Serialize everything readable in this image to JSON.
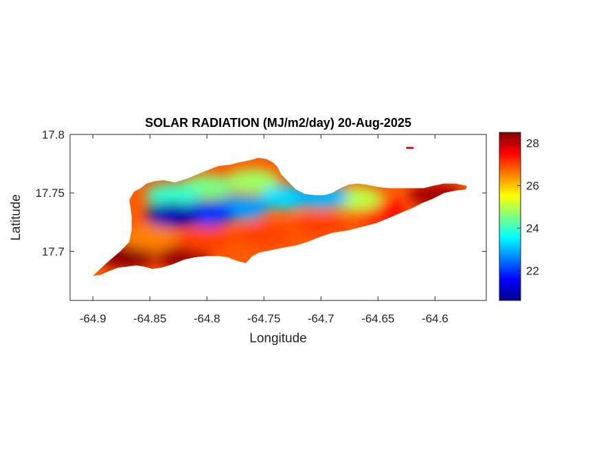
{
  "title": "SOLAR RADIATION (MJ/m2/day) 20-Aug-2025",
  "axes": {
    "xlabel": "Longitude",
    "ylabel": "Latitude",
    "x_ticks": [
      "-64.9",
      "-64.85",
      "-64.8",
      "-64.75",
      "-64.7",
      "-64.65",
      "-64.6"
    ],
    "y_ticks": [
      "17.8",
      "17.75",
      "17.7"
    ],
    "xlim": [
      -64.92,
      -64.555
    ],
    "ylim": [
      17.658,
      17.8
    ]
  },
  "colorbar": {
    "colormap": "jet",
    "min": 20.6,
    "max": 28.5,
    "ticks": [
      "28",
      "26",
      "24",
      "22"
    ]
  },
  "map": {
    "region": "St. Croix",
    "outline_lonlat": [
      [
        -64.9,
        17.679
      ],
      [
        -64.888,
        17.69
      ],
      [
        -64.876,
        17.7
      ],
      [
        -64.868,
        17.708
      ],
      [
        -64.866,
        17.718
      ],
      [
        -64.866,
        17.73
      ],
      [
        -64.867,
        17.738
      ],
      [
        -64.868,
        17.744
      ],
      [
        -64.864,
        17.751
      ],
      [
        -64.858,
        17.754
      ],
      [
        -64.853,
        17.758
      ],
      [
        -64.846,
        17.76
      ],
      [
        -64.838,
        17.761
      ],
      [
        -64.828,
        17.759
      ],
      [
        -64.818,
        17.762
      ],
      [
        -64.808,
        17.766
      ],
      [
        -64.798,
        17.77
      ],
      [
        -64.79,
        17.773
      ],
      [
        -64.78,
        17.774
      ],
      [
        -64.772,
        17.776
      ],
      [
        -64.762,
        17.778
      ],
      [
        -64.755,
        17.78
      ],
      [
        -64.748,
        17.779
      ],
      [
        -64.742,
        17.776
      ],
      [
        -64.738,
        17.772
      ],
      [
        -64.735,
        17.766
      ],
      [
        -64.729,
        17.76
      ],
      [
        -64.722,
        17.753
      ],
      [
        -64.714,
        17.749
      ],
      [
        -64.705,
        17.748
      ],
      [
        -64.697,
        17.748
      ],
      [
        -64.69,
        17.75
      ],
      [
        -64.683,
        17.754
      ],
      [
        -64.676,
        17.757
      ],
      [
        -64.668,
        17.758
      ],
      [
        -64.66,
        17.757
      ],
      [
        -64.65,
        17.755
      ],
      [
        -64.64,
        17.754
      ],
      [
        -64.63,
        17.754
      ],
      [
        -64.62,
        17.754
      ],
      [
        -64.61,
        17.754
      ],
      [
        -64.602,
        17.756
      ],
      [
        -64.592,
        17.758
      ],
      [
        -64.582,
        17.758
      ],
      [
        -64.572,
        17.756
      ],
      [
        -64.573,
        17.753
      ],
      [
        -64.582,
        17.752
      ],
      [
        -64.592,
        17.75
      ],
      [
        -64.602,
        17.745
      ],
      [
        -64.612,
        17.741
      ],
      [
        -64.62,
        17.737
      ],
      [
        -64.63,
        17.733
      ],
      [
        -64.642,
        17.728
      ],
      [
        -64.652,
        17.724
      ],
      [
        -64.664,
        17.721
      ],
      [
        -64.676,
        17.718
      ],
      [
        -64.69,
        17.716
      ],
      [
        -64.702,
        17.712
      ],
      [
        -64.712,
        17.708
      ],
      [
        -64.722,
        17.705
      ],
      [
        -64.734,
        17.703
      ],
      [
        -64.744,
        17.701
      ],
      [
        -64.754,
        17.699
      ],
      [
        -64.76,
        17.696
      ],
      [
        -64.766,
        17.69
      ],
      [
        -64.774,
        17.692
      ],
      [
        -64.782,
        17.695
      ],
      [
        -64.79,
        17.696
      ],
      [
        -64.8,
        17.696
      ],
      [
        -64.81,
        17.695
      ],
      [
        -64.82,
        17.693
      ],
      [
        -64.83,
        17.689
      ],
      [
        -64.84,
        17.686
      ],
      [
        -64.848,
        17.685
      ],
      [
        -64.855,
        17.687
      ],
      [
        -64.862,
        17.688
      ],
      [
        -64.87,
        17.687
      ],
      [
        -64.878,
        17.686
      ],
      [
        -64.886,
        17.683
      ],
      [
        -64.893,
        17.68
      ],
      [
        -64.9,
        17.679
      ]
    ],
    "islet_lonlat": [
      [
        -64.6245,
        17.7885
      ],
      [
        -64.6195,
        17.7885
      ]
    ],
    "field_samples": [
      {
        "lon": -64.83,
        "lat": 17.731,
        "value": 21.0
      },
      {
        "lon": -64.8,
        "lat": 17.732,
        "value": 22.0
      },
      {
        "lon": -64.77,
        "lat": 17.737,
        "value": 22.8
      },
      {
        "lon": -64.73,
        "lat": 17.746,
        "value": 23.3
      },
      {
        "lon": -64.7,
        "lat": 17.747,
        "value": 23.0
      },
      {
        "lon": -64.83,
        "lat": 17.748,
        "value": 24.0
      },
      {
        "lon": -64.8,
        "lat": 17.755,
        "value": 24.5
      },
      {
        "lon": -64.76,
        "lat": 17.76,
        "value": 24.8
      },
      {
        "lon": -64.67,
        "lat": 17.745,
        "value": 25.0
      },
      {
        "lon": -64.85,
        "lat": 17.712,
        "value": 26.5
      },
      {
        "lon": -64.8,
        "lat": 17.71,
        "value": 27.0
      },
      {
        "lon": -64.75,
        "lat": 17.714,
        "value": 27.0
      },
      {
        "lon": -64.7,
        "lat": 17.722,
        "value": 27.0
      },
      {
        "lon": -64.65,
        "lat": 17.735,
        "value": 27.5
      },
      {
        "lon": -64.6,
        "lat": 17.748,
        "value": 28.2
      },
      {
        "lon": -64.87,
        "lat": 17.695,
        "value": 28.4
      },
      {
        "lon": -64.82,
        "lat": 17.694,
        "value": 28.3
      }
    ]
  }
}
